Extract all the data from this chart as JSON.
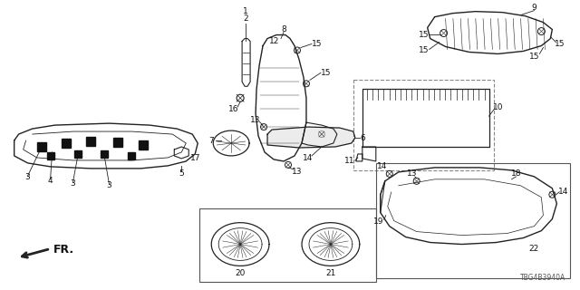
{
  "bg_color": "#ffffff",
  "part_number": "TBG4B3940A",
  "fr_label": "FR.",
  "lc": "#222222",
  "tc": "#111111"
}
